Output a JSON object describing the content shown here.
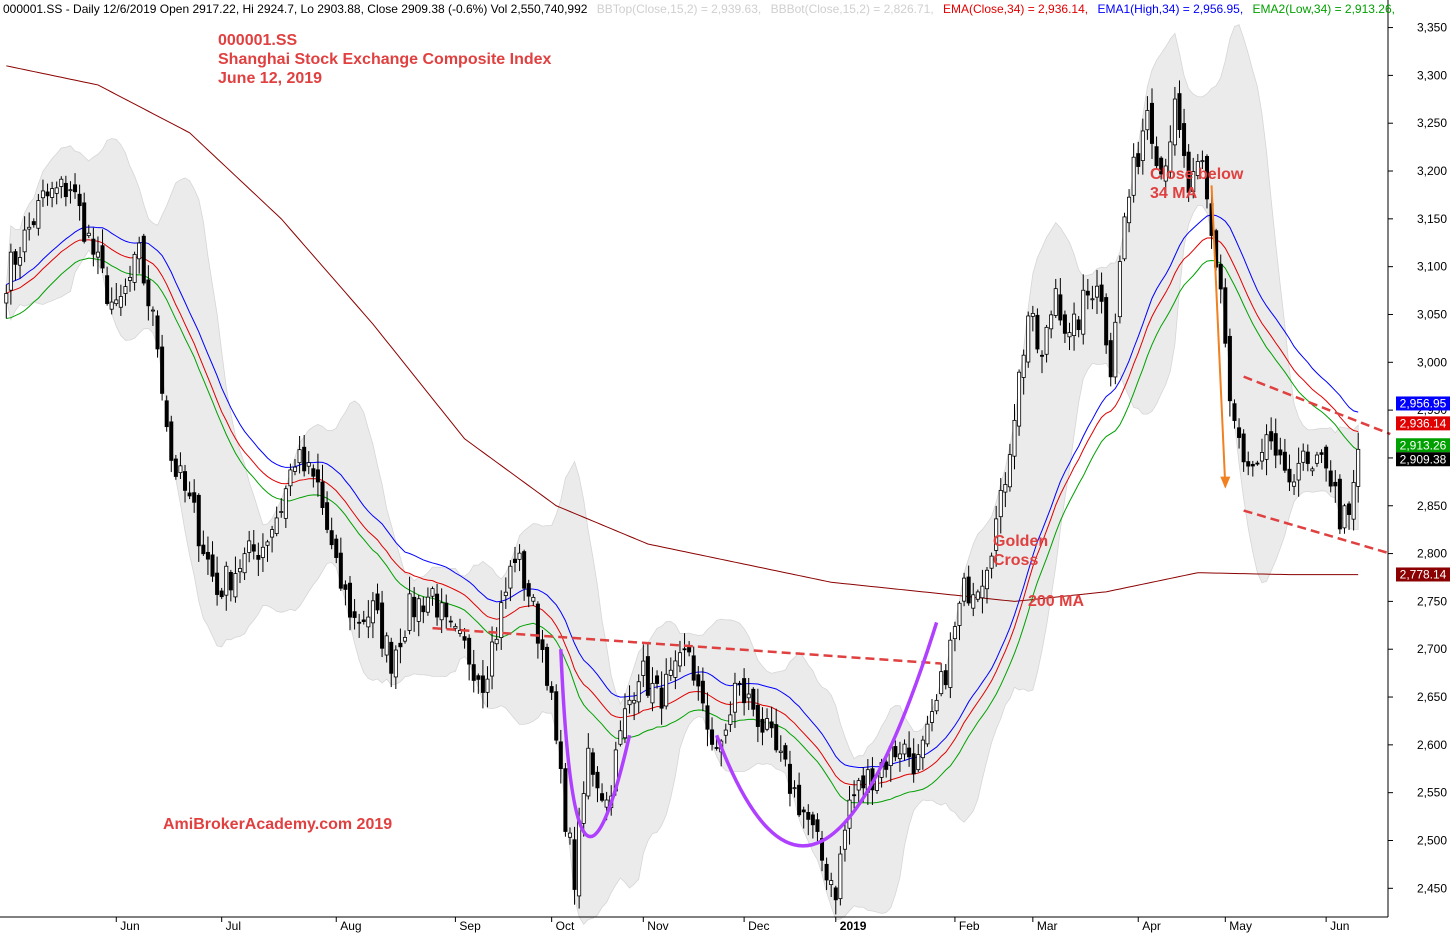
{
  "header": {
    "ticker_line": "000001.SS - Daily 12/6/2019 Open 2917.22, Hi 2924.7, Lo 2903.88, Close 2909.38 (-0.6%) Vol 2,550,740,992",
    "bbtop": "BBTop(Close,15,2) = 2,939.63,",
    "bbbot": "BBBot(Close,15,2) = 2,826.71,",
    "ema": "EMA(Close,34) = 2,936.14,",
    "ema1": "EMA1(High,34) = 2,956.95,",
    "ema2": "EMA2(Low,34) = 2,913.26,"
  },
  "annotations": {
    "title_ticker": "000001.SS",
    "title_name": "Shanghai Stock Exchange Composite Index",
    "title_date": "June 12, 2019",
    "close_below_1": "Close below",
    "close_below_2": "34 MA",
    "golden_1": "Golden",
    "golden_2": "Cross",
    "ma200": "200 MA",
    "watermark": "AmiBrokerAcademy.com  2019"
  },
  "colors": {
    "ema_close": "#e00000",
    "ema_high": "#0000ff",
    "ema_low": "#00a000",
    "ma200": "#8b0000",
    "bollinger": "#e8e8e8",
    "annotation": "#e04040",
    "cup": "#b040ff",
    "arrow": "#f08020"
  },
  "chart_data": {
    "type": "candlestick",
    "ylim": [
      2420,
      3360
    ],
    "y_ticks": [
      2450,
      2500,
      2550,
      2600,
      2650,
      2700,
      2750,
      2800,
      2850,
      2900,
      2950,
      3000,
      3050,
      3100,
      3150,
      3200,
      3250,
      3300,
      3350
    ],
    "y_tick_labels": [
      "2,450",
      "2,500",
      "2,550",
      "2,600",
      "2,650",
      "2,700",
      "2,750",
      "2,800",
      "2,850",
      "2,900",
      "2,950",
      "3,000",
      "3,050",
      "3,100",
      "3,150",
      "3,200",
      "3,250",
      "3,300",
      "3,350"
    ],
    "x_labels": [
      {
        "label": "Jun",
        "bar": 24
      },
      {
        "label": "Jul",
        "bar": 47
      },
      {
        "label": "Aug",
        "bar": 72
      },
      {
        "label": "Sep",
        "bar": 98
      },
      {
        "label": "Oct",
        "bar": 119
      },
      {
        "label": "Nov",
        "bar": 139
      },
      {
        "label": "Dec",
        "bar": 161
      },
      {
        "label": "2019",
        "bar": 181
      },
      {
        "label": "Feb",
        "bar": 207
      },
      {
        "label": "Mar",
        "bar": 224
      },
      {
        "label": "Apr",
        "bar": 247
      },
      {
        "label": "May",
        "bar": 266
      },
      {
        "label": "Jun",
        "bar": 288
      }
    ],
    "bars": 302,
    "close_anchors": [
      [
        0,
        3090
      ],
      [
        8,
        3170
      ],
      [
        14,
        3185
      ],
      [
        20,
        3100
      ],
      [
        24,
        3050
      ],
      [
        29,
        3110
      ],
      [
        33,
        3020
      ],
      [
        36,
        2900
      ],
      [
        41,
        2840
      ],
      [
        46,
        2760
      ],
      [
        51,
        2790
      ],
      [
        56,
        2810
      ],
      [
        60,
        2850
      ],
      [
        63,
        2900
      ],
      [
        68,
        2870
      ],
      [
        72,
        2780
      ],
      [
        76,
        2730
      ],
      [
        80,
        2740
      ],
      [
        84,
        2690
      ],
      [
        88,
        2740
      ],
      [
        93,
        2760
      ],
      [
        96,
        2720
      ],
      [
        100,
        2700
      ],
      [
        104,
        2670
      ],
      [
        107,
        2720
      ],
      [
        111,
        2800
      ],
      [
        114,
        2760
      ],
      [
        118,
        2680
      ],
      [
        121,
        2560
      ],
      [
        124,
        2460
      ],
      [
        127,
        2590
      ],
      [
        131,
        2540
      ],
      [
        135,
        2630
      ],
      [
        138,
        2680
      ],
      [
        142,
        2650
      ],
      [
        146,
        2670
      ],
      [
        149,
        2700
      ],
      [
        152,
        2630
      ],
      [
        156,
        2590
      ],
      [
        159,
        2660
      ],
      [
        163,
        2640
      ],
      [
        167,
        2600
      ],
      [
        171,
        2560
      ],
      [
        175,
        2520
      ],
      [
        178,
        2480
      ],
      [
        181,
        2450
      ],
      [
        184,
        2540
      ],
      [
        187,
        2560
      ],
      [
        191,
        2580
      ],
      [
        195,
        2600
      ],
      [
        199,
        2580
      ],
      [
        202,
        2620
      ],
      [
        205,
        2680
      ],
      [
        209,
        2760
      ],
      [
        213,
        2780
      ],
      [
        217,
        2850
      ],
      [
        220,
        2950
      ],
      [
        223,
        3050
      ],
      [
        226,
        3000
      ],
      [
        229,
        3080
      ],
      [
        232,
        3020
      ],
      [
        235,
        3060
      ],
      [
        238,
        3090
      ],
      [
        241,
        3000
      ],
      [
        244,
        3150
      ],
      [
        247,
        3220
      ],
      [
        249,
        3270
      ],
      [
        252,
        3200
      ],
      [
        255,
        3260
      ],
      [
        258,
        3180
      ],
      [
        261,
        3200
      ],
      [
        263,
        3130
      ],
      [
        265,
        3080
      ],
      [
        267,
        2960
      ],
      [
        270,
        2890
      ],
      [
        273,
        2880
      ],
      [
        276,
        2920
      ],
      [
        279,
        2870
      ],
      [
        282,
        2900
      ],
      [
        285,
        2880
      ],
      [
        288,
        2900
      ],
      [
        291,
        2840
      ],
      [
        293,
        2830
      ],
      [
        295,
        2909
      ]
    ],
    "ma200_anchors": [
      [
        0,
        3310
      ],
      [
        20,
        3290
      ],
      [
        40,
        3240
      ],
      [
        60,
        3150
      ],
      [
        80,
        3040
      ],
      [
        100,
        2920
      ],
      [
        120,
        2850
      ],
      [
        140,
        2810
      ],
      [
        160,
        2790
      ],
      [
        180,
        2770
      ],
      [
        200,
        2760
      ],
      [
        220,
        2750
      ],
      [
        240,
        2760
      ],
      [
        260,
        2780
      ],
      [
        280,
        2778
      ],
      [
        295,
        2778
      ]
    ],
    "last_values": {
      "ema_high": {
        "value": 2956.95,
        "label": "2,956.95"
      },
      "ema_close": {
        "value": 2936.14,
        "label": "2,936.14"
      },
      "ema_low": {
        "value": 2913.26,
        "label": "2,913.26"
      },
      "close": {
        "value": 2909.38,
        "label": "2,909.38"
      },
      "ma200": {
        "value": 2778.14,
        "label": "2,778.14"
      }
    },
    "neckline": [
      [
        93,
        2722
      ],
      [
        204,
        2685
      ]
    ],
    "wedge_top": [
      [
        270,
        2985
      ],
      [
        302,
        2925
      ]
    ],
    "wedge_bottom": [
      [
        270,
        2845
      ],
      [
        302,
        2800
      ]
    ]
  }
}
